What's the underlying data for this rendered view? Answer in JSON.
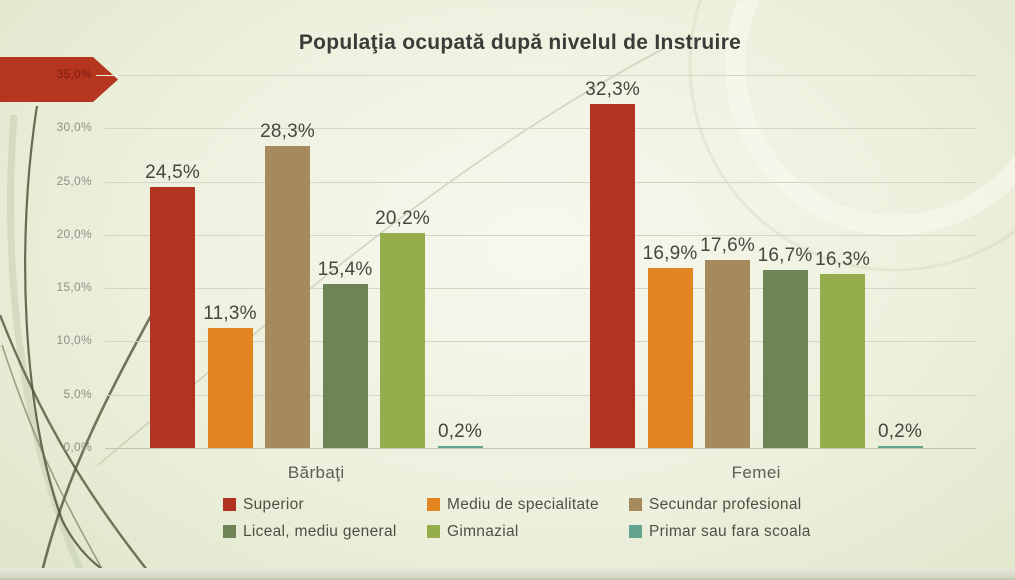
{
  "slide": {
    "title": "Populaţia ocupată după nivelul de Instruire"
  },
  "chart_data": {
    "type": "bar",
    "title": "Populaţia ocupată după nivelul de Instruire",
    "categories": [
      "Bărbaţi",
      "Femei"
    ],
    "series": [
      {
        "name": "Superior",
        "color": "#b23420",
        "values": [
          24.5,
          32.3
        ]
      },
      {
        "name": "Mediu de specialitate",
        "color": "#e2841f",
        "values": [
          11.3,
          16.9
        ]
      },
      {
        "name": "Secundar profesional",
        "color": "#a68a5d",
        "values": [
          28.3,
          17.6
        ]
      },
      {
        "name": "Liceal, mediu general",
        "color": "#6f8456",
        "values": [
          15.4,
          16.7
        ]
      },
      {
        "name": "Gimnazial",
        "color": "#96ad4e",
        "values": [
          20.2,
          16.3
        ]
      },
      {
        "name": "Primar sau fara scoala",
        "color": "#64a38f",
        "values": [
          0.2,
          0.2
        ]
      }
    ],
    "value_labels": [
      [
        "24,5%",
        "11,3%",
        "28,3%",
        "15,4%",
        "20,2%",
        "0,2%"
      ],
      [
        "32,3%",
        "16,9%",
        "17,6%",
        "16,7%",
        "16,3%",
        "0,2%"
      ]
    ],
    "y_ticks": [
      "35,0%",
      "30,0%",
      "25,0%",
      "20,0%",
      "15,0%",
      "10,0%",
      "5,0%",
      "0,0%"
    ],
    "ylim": [
      0,
      35
    ],
    "grid": true,
    "legend_position": "bottom",
    "value_suffix": "%",
    "decimal_separator": ","
  },
  "colors": {
    "accent_arrow": "#b5351f",
    "background_light": "#f7f8ef",
    "background_edge": "#dce3c4",
    "gridline": "#d3d6c3",
    "tick_text": "#8f9087",
    "title_text": "#3c3b37"
  }
}
